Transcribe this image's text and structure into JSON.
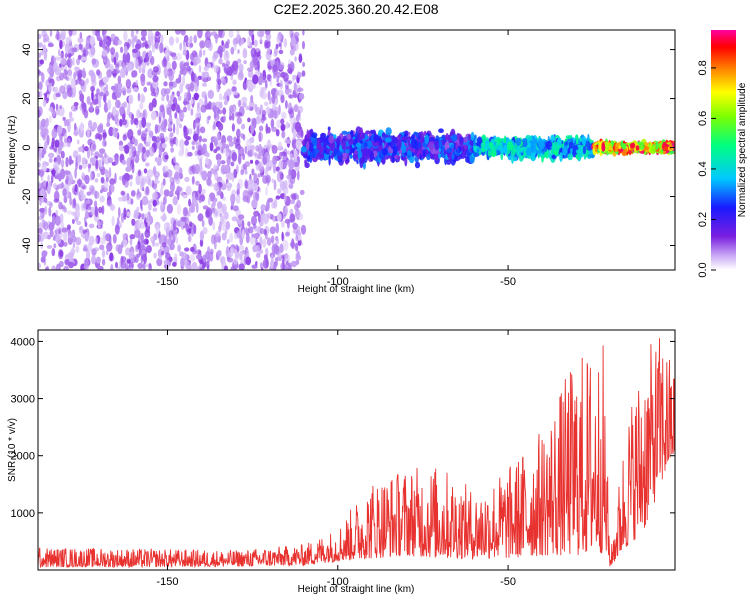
{
  "chart_data": [
    {
      "type": "heatmap",
      "title": "C2E2.2025.360.20.42.E08",
      "xlabel": "Height of straight line (km)",
      "ylabel": "Frequency (Hz)",
      "xlim": [
        -188,
        -1
      ],
      "ylim": [
        -50,
        48
      ],
      "xticks": [
        -150,
        -100,
        -50
      ],
      "xtick_labels": [
        "-150",
        "-100",
        "-50"
      ],
      "yticks": [
        40,
        20,
        0,
        -20,
        -40
      ],
      "ytick_labels": [
        "40",
        "20",
        "0",
        "-20",
        "-40"
      ],
      "colorbar": {
        "label": "Normalized spectral amplitude",
        "range": [
          0,
          0.95
        ],
        "ticks": [
          0.0,
          0.2,
          0.4,
          0.6,
          0.8
        ],
        "tick_labels": [
          "0.0",
          "0.2",
          "0.4",
          "0.6",
          "0.8"
        ],
        "colormap": "white-purple-blue-cyan-green-yellow-red-magenta"
      },
      "regions": [
        {
          "x_range": [
            -188,
            -110
          ],
          "freq_range": [
            -50,
            48
          ],
          "amplitude_range": [
            0.03,
            0.12
          ],
          "pattern": "diffuse scattered noise"
        },
        {
          "x_range": [
            -110,
            -60
          ],
          "freq_range": [
            -8,
            8
          ],
          "amplitude_range": [
            0.1,
            0.35
          ],
          "pattern": "band centered near 0 Hz"
        },
        {
          "x_range": [
            -60,
            -25
          ],
          "freq_range": [
            -5,
            5
          ],
          "amplitude_range": [
            0.25,
            0.5
          ],
          "pattern": "narrowing band near 0 Hz"
        },
        {
          "x_range": [
            -25,
            -1
          ],
          "freq_range": [
            -2,
            2
          ],
          "amplitude_range": [
            0.5,
            0.95
          ],
          "pattern": "narrow strong line at 0 Hz"
        }
      ]
    },
    {
      "type": "line",
      "title": "",
      "xlabel": "Height of straight line (km)",
      "ylabel": "SNR (10 * v/v)",
      "xlim": [
        -188,
        -1
      ],
      "ylim": [
        0,
        4200
      ],
      "xticks": [
        -150,
        -100,
        -50
      ],
      "xtick_labels": [
        "-150",
        "-100",
        "-50"
      ],
      "yticks": [
        1000,
        2000,
        3000,
        4000
      ],
      "ytick_labels": [
        "1000",
        "2000",
        "3000",
        "4000"
      ],
      "series": [
        {
          "name": "SNR",
          "color": "#e8322f",
          "envelope_x": [
            -188,
            -160,
            -130,
            -110,
            -100,
            -90,
            -80,
            -70,
            -60,
            -50,
            -40,
            -30,
            -22,
            -20,
            -15,
            -10,
            -5,
            -1
          ],
          "envelope_max": [
            400,
            380,
            350,
            450,
            750,
            1600,
            1800,
            1850,
            1400,
            1800,
            2500,
            3800,
            4000,
            250,
            2800,
            3800,
            4200,
            3500
          ],
          "envelope_min": [
            50,
            50,
            60,
            80,
            150,
            200,
            250,
            200,
            200,
            200,
            250,
            250,
            300,
            50,
            400,
            700,
            1500,
            2000
          ]
        }
      ]
    }
  ]
}
